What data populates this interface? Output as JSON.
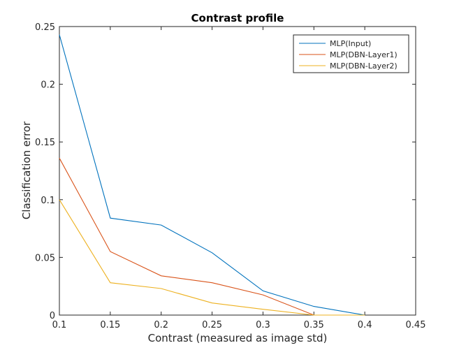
{
  "chart_data": {
    "type": "line",
    "title": "Contrast profile",
    "xlabel": "Contrast (measured as image std)",
    "ylabel": "Classification error",
    "xlim": [
      0.1,
      0.45
    ],
    "ylim": [
      0,
      0.25
    ],
    "xticks": [
      0.1,
      0.15,
      0.2,
      0.25,
      0.3,
      0.35,
      0.4,
      0.45
    ],
    "xtick_labels": [
      "0.1",
      "0.15",
      "0.2",
      "0.25",
      "0.3",
      "0.35",
      "0.4",
      "0.45"
    ],
    "yticks": [
      0,
      0.05,
      0.1,
      0.15,
      0.2,
      0.25
    ],
    "ytick_labels": [
      "0",
      "0.05",
      "0.1",
      "0.15",
      "0.2",
      "0.25"
    ],
    "grid": false,
    "legend": "top-right",
    "x": [
      0.1,
      0.15,
      0.2,
      0.25,
      0.3,
      0.35,
      0.4
    ],
    "series": [
      {
        "name": "MLP(Input)",
        "color": "#0072BD",
        "values": [
          0.243,
          0.084,
          0.078,
          0.054,
          0.021,
          0.0075,
          0.0
        ]
      },
      {
        "name": "MLP(DBN-Layer1)",
        "color": "#D95319",
        "values": [
          0.136,
          0.055,
          0.034,
          0.028,
          0.0175,
          0.0,
          0.0
        ]
      },
      {
        "name": "MLP(DBN-Layer2)",
        "color": "#EDB120",
        "values": [
          0.1,
          0.028,
          0.023,
          0.0105,
          0.005,
          0.0,
          0.0
        ]
      }
    ]
  }
}
